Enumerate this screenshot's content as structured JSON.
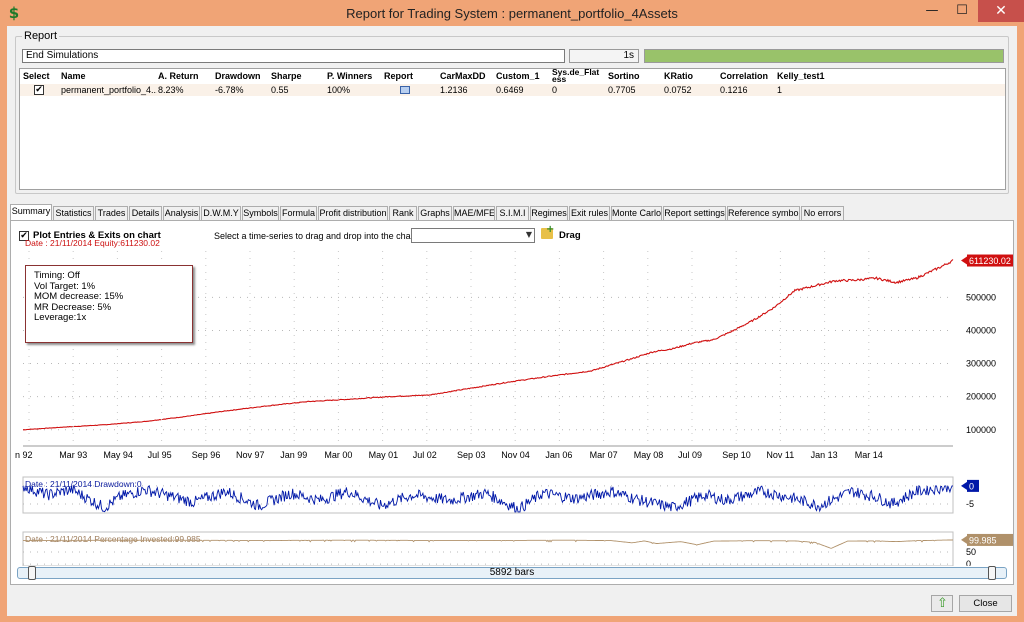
{
  "window": {
    "title": "Report for Trading System : permanent_portfolio_4Assets",
    "app_icon": "$",
    "minimize": "—",
    "maximize": "☐",
    "close": "✕"
  },
  "report": {
    "group_label": "Report",
    "status": "End Simulations",
    "elapsed": "1s",
    "progress": 1.0,
    "columns": [
      "Select",
      "Name",
      "A. Return",
      "Drawdown",
      "Sharpe",
      "P. Winners",
      "Report",
      "CarMaxDD",
      "Custom_1",
      "Sys.de_Flat ess",
      "Sortino",
      "KRatio",
      "Correlation",
      "Kelly_test1"
    ],
    "row": {
      "selected": "✔",
      "name": "permanent_portfolio_4...",
      "a_return": "8.23%",
      "drawdown": "-6.78%",
      "sharpe": "0.55",
      "p_winners": "100%",
      "carmaxdd": "1.2136",
      "custom_1": "0.6469",
      "sysde": "0",
      "sortino": "0.7705",
      "kratio": "0.0752",
      "correlation": "0.1216",
      "kelly": "1"
    }
  },
  "tabs": [
    "Summary",
    "Statistics",
    "Trades",
    "Details",
    "Analysis",
    "D.W.M.Y",
    "Symbols",
    "Formula",
    "Profit distribution",
    "Rank",
    "Graphs",
    "MAE/MFE",
    "S.I.M.I",
    "Regimes",
    "Exit rules",
    "Monte Carlo",
    "Report settings",
    "Reference symbol",
    "No errors"
  ],
  "active_tab": "Summary",
  "summary": {
    "plot_check": "✔",
    "plot_label": "Plot Entries & Exits on chart",
    "select_label": "Select a time-series to drag and drop into the chart :",
    "select_value": "",
    "drag_label": "Drag",
    "info_box": [
      "Timing: Off",
      "Vol Target: 1%",
      "MOM decrease: 15%",
      "MR Decrease: 5%",
      "Leverage:1x"
    ]
  },
  "chart_data": [
    {
      "type": "line",
      "title": "Date : 21/11/2014   Equity:611230.02",
      "x_tick_labels": [
        "n 92",
        "Mar 93",
        "May 94",
        "Jul 95",
        "Sep 96",
        "Nov 97",
        "Jan 99",
        "Mar 00",
        "May 01",
        "Jul 02",
        "Sep 03",
        "Nov 04",
        "Jan 06",
        "Mar 07",
        "May 08",
        "Jul 09",
        "Sep 10",
        "Nov 11",
        "Jan 13",
        "Mar 14"
      ],
      "y_tick_labels": [
        "100000",
        "200000",
        "300000",
        "400000",
        "500000"
      ],
      "ylim": [
        60000,
        640000
      ],
      "last_value_label": "611230.02",
      "series": [
        {
          "color": "#d01010",
          "x": [
            1992.0,
            1993.0,
            1994.0,
            1995.0,
            1996.0,
            1997.0,
            1998.0,
            1999.0,
            2000.0,
            2001.0,
            2002.0,
            2003.0,
            2004.0,
            2005.0,
            2006.0,
            2007.0,
            2007.5,
            2008.0,
            2008.5,
            2009.0,
            2009.5,
            2010.0,
            2010.5,
            2011.0,
            2011.5,
            2012.0,
            2012.5,
            2013.0,
            2013.5,
            2014.0,
            2014.6,
            2014.9
          ],
          "values": [
            100000,
            108000,
            115000,
            125000,
            140000,
            157000,
            172000,
            185000,
            192000,
            200000,
            205000,
            225000,
            245000,
            262000,
            278000,
            315000,
            335000,
            345000,
            362000,
            372000,
            400000,
            432000,
            470000,
            520000,
            535000,
            550000,
            552000,
            558000,
            545000,
            558000,
            592000,
            611230
          ]
        }
      ]
    },
    {
      "type": "line",
      "title": "Date : 21/11/2014   Drawdown:0",
      "y_tick_labels": [
        "0",
        "-5"
      ],
      "ylim": [
        -7.5,
        0.8
      ],
      "last_value_label": "0",
      "series": [
        {
          "color": "#0018a8",
          "x": [
            1992.0,
            1992.6,
            1993.2,
            1994.0,
            1994.4,
            1995.0,
            1996.2,
            1997.0,
            1997.8,
            1998.6,
            1999.3,
            2000.0,
            2000.8,
            2001.6,
            2002.5,
            2003.4,
            2004.2,
            2004.8,
            2005.6,
            2006.5,
            2007.2,
            2008.0,
            2008.8,
            2009.3,
            2010.2,
            2011.0,
            2011.6,
            2012.4,
            2013.0,
            2013.4,
            2014.0,
            2014.9
          ],
          "values": [
            0,
            -2.5,
            -1.0,
            -6.0,
            -3.0,
            -1.0,
            -4.5,
            -1.5,
            -5.5,
            -2.0,
            -4.0,
            -1.5,
            -5.5,
            -2.5,
            -4.0,
            -2.0,
            -6.5,
            -2.0,
            -3.5,
            -1.5,
            -4.0,
            -6.0,
            -2.5,
            -4.0,
            -1.5,
            -3.5,
            -5.5,
            -1.5,
            -3.0,
            -5.0,
            -1.5,
            0
          ]
        }
      ]
    },
    {
      "type": "line",
      "title": "Date : 21/11/2014   Percentage Invested:99.985",
      "y_tick_labels": [
        "50",
        "0"
      ],
      "ylim": [
        -8,
        108
      ],
      "last_value_label": "99.985",
      "series": [
        {
          "color": "#b0916a",
          "x": [
            1992.0,
            1995.0,
            1998.0,
            2000.0,
            2002.0,
            2004.0,
            2005.5,
            2006.5,
            2007.0,
            2007.3,
            2007.6,
            2008.2,
            2008.6,
            2009.0,
            2010.0,
            2011.0,
            2011.5,
            2011.9,
            2012.3,
            2013.0,
            2013.5,
            2014.0,
            2014.9
          ],
          "values": [
            98,
            99,
            98,
            99,
            98,
            98,
            99,
            97,
            88,
            96,
            85,
            93,
            80,
            95,
            97,
            96,
            90,
            65,
            95,
            96,
            93,
            97,
            99.985
          ]
        }
      ]
    }
  ],
  "scroller": {
    "label": "5892 bars",
    "bars": 5892
  },
  "footer": {
    "close_label": "Close",
    "up_icon": "⇧"
  }
}
